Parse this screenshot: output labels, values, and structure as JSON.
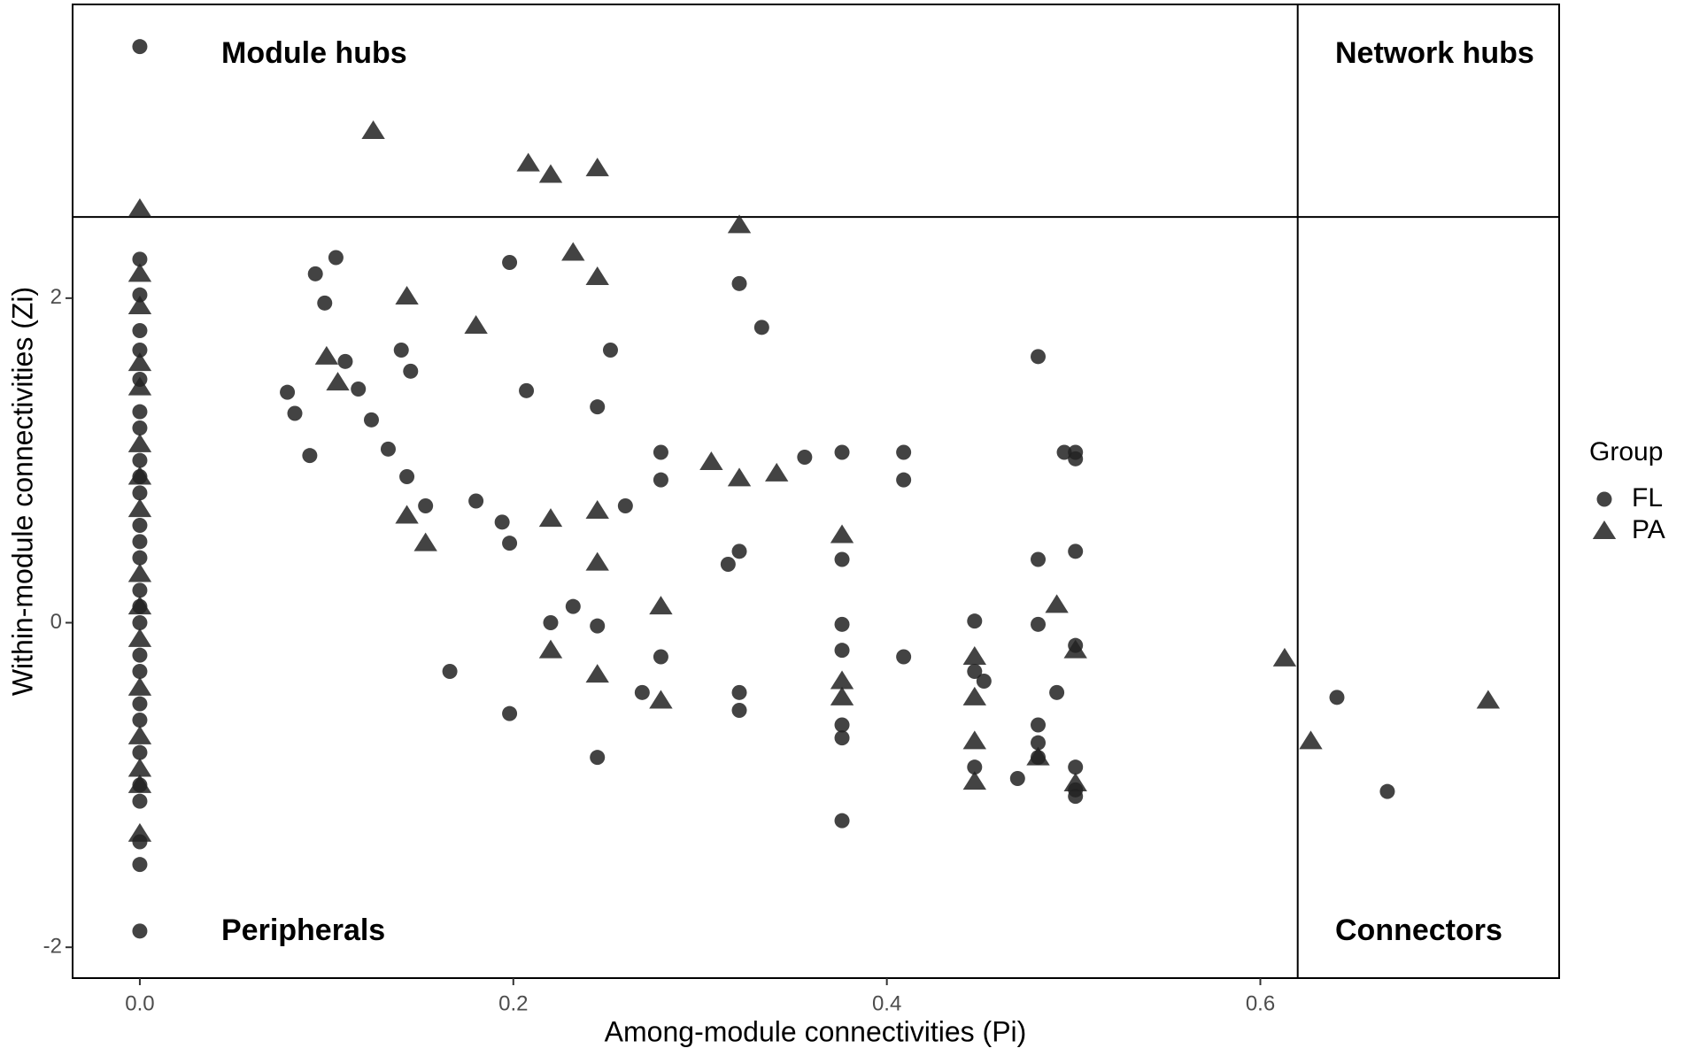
{
  "chart_data": {
    "type": "scatter",
    "x_label": "Among-module connectivities (Pi)",
    "y_label": "Within-module connectivities (Zi)",
    "xlim": [
      -0.036,
      0.76
    ],
    "ylim": [
      -2.19,
      3.81
    ],
    "xticks": [
      {
        "value": 0,
        "label": "0.0"
      },
      0.2,
      0.4,
      0.6
    ],
    "yticks": [
      -2,
      0,
      2
    ],
    "thresholds": {
      "x": 0.62,
      "y": 2.5
    },
    "quadrant_labels": [
      "Module hubs",
      "Network hubs",
      "Peripherals",
      "Connectors"
    ],
    "legend_title": "Group",
    "legend": "right",
    "series": [
      {
        "name": "FL",
        "marker": "circle",
        "color": "#222222",
        "x": [
          0,
          0,
          0,
          0,
          0,
          0,
          0,
          0,
          0,
          0,
          0,
          0,
          0,
          0,
          0,
          0,
          0,
          0,
          0,
          0,
          0,
          0,
          0,
          0,
          0,
          0,
          0,
          0.079,
          0.083,
          0.091,
          0.094,
          0.099,
          0.105,
          0.11,
          0.117,
          0.124,
          0.133,
          0.14,
          0.143,
          0.145,
          0.153,
          0.166,
          0.18,
          0.194,
          0.198,
          0.198,
          0.198,
          0.207,
          0.22,
          0.232,
          0.245,
          0.245,
          0.245,
          0.252,
          0.26,
          0.269,
          0.279,
          0.279,
          0.279,
          0.315,
          0.321,
          0.321,
          0.321,
          0.321,
          0.333,
          0.356,
          0.376,
          0.376,
          0.376,
          0.376,
          0.376,
          0.376,
          0.376,
          0.409,
          0.409,
          0.409,
          0.447,
          0.447,
          0.452,
          0.447,
          0.47,
          0.481,
          0.481,
          0.481,
          0.481,
          0.481,
          0.481,
          0.491,
          0.495,
          0.501,
          0.501,
          0.501,
          0.501,
          0.501,
          0.501,
          0.501,
          0.641,
          0.668
        ],
        "values": [
          3.55,
          2.24,
          2.02,
          1.8,
          1.68,
          1.5,
          1.3,
          1.2,
          1.0,
          0.9,
          0.8,
          0.6,
          0.5,
          0.4,
          0.2,
          0.1,
          0,
          -0.2,
          -0.3,
          -0.5,
          -0.6,
          -0.8,
          -1.0,
          -1.1,
          -1.35,
          -1.49,
          -1.9,
          1.42,
          1.29,
          1.03,
          2.15,
          1.97,
          2.25,
          1.61,
          1.44,
          1.25,
          1.07,
          1.68,
          0.9,
          1.55,
          0.72,
          -0.3,
          0.75,
          0.62,
          0.49,
          2.22,
          -0.56,
          1.43,
          0.0,
          0.1,
          -0.02,
          1.33,
          -0.83,
          1.68,
          0.72,
          -0.43,
          1.05,
          0.88,
          -0.21,
          0.36,
          0.44,
          2.09,
          -0.43,
          -0.54,
          1.82,
          1.02,
          1.05,
          0.39,
          -0.01,
          -0.17,
          -0.63,
          -0.71,
          -1.22,
          1.05,
          0.88,
          -0.21,
          0.01,
          -0.3,
          -0.36,
          -0.89,
          -0.96,
          1.64,
          0.39,
          -0.01,
          -0.63,
          -0.74,
          -0.83,
          -0.43,
          1.05,
          1.01,
          1.05,
          0.44,
          -0.14,
          -0.89,
          -1.03,
          -1.07,
          -0.46,
          -1.04
        ]
      },
      {
        "name": "PA",
        "marker": "triangle",
        "color": "#222222",
        "x": [
          0,
          0,
          0,
          0,
          0,
          0,
          0,
          0,
          0,
          0,
          0,
          0,
          0,
          0,
          0,
          0,
          0.125,
          0.1,
          0.106,
          0.143,
          0.143,
          0.153,
          0.18,
          0.208,
          0.22,
          0.22,
          0.22,
          0.232,
          0.245,
          0.245,
          0.245,
          0.245,
          0.245,
          0.279,
          0.279,
          0.306,
          0.321,
          0.321,
          0.341,
          0.376,
          0.376,
          0.376,
          0.447,
          0.447,
          0.447,
          0.447,
          0.481,
          0.491,
          0.501,
          0.501,
          0.613,
          0.627,
          0.722
        ],
        "values": [
          2.55,
          2.15,
          1.95,
          1.6,
          1.45,
          1.1,
          0.9,
          0.7,
          0.3,
          0.1,
          -0.1,
          -0.4,
          -0.7,
          -0.9,
          -1.0,
          -1.3,
          3.03,
          1.64,
          1.48,
          2.01,
          0.66,
          0.49,
          1.83,
          2.83,
          2.76,
          0.64,
          -0.17,
          2.28,
          2.8,
          2.13,
          0.69,
          0.37,
          -0.32,
          0.1,
          -0.48,
          0.99,
          2.45,
          0.89,
          0.92,
          0.54,
          -0.36,
          -0.46,
          -0.21,
          -0.46,
          -0.73,
          -0.98,
          -0.83,
          0.11,
          -0.17,
          -0.99,
          -0.22,
          -0.73,
          -0.48
        ]
      }
    ]
  }
}
